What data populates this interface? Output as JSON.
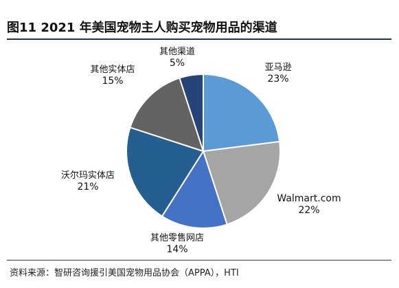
{
  "figure": {
    "title": "图11 2021 年美国宠物主人购买宠物用品的渠道",
    "source": "资料来源：智研咨询援引美国宠物用品协会（APPA），HTI"
  },
  "chart_data": {
    "type": "pie",
    "title": "图11 2021 年美国宠物主人购买宠物用品的渠道",
    "unit": "%",
    "slices": [
      {
        "label": "亚马逊",
        "value": 23,
        "display": "23%",
        "color": "#5b9bd5"
      },
      {
        "label": "Walmart.com",
        "value": 22,
        "display": "22%",
        "color": "#a5a5a5"
      },
      {
        "label": "其他零售网店",
        "value": 14,
        "display": "14%",
        "color": "#4472c4"
      },
      {
        "label": "沃尔玛实体店",
        "value": 21,
        "display": "21%",
        "color": "#255e91"
      },
      {
        "label": "其他实体店",
        "value": 15,
        "display": "15%",
        "color": "#636363"
      },
      {
        "label": "其他渠道",
        "value": 5,
        "display": "5%",
        "color": "#264478"
      }
    ]
  }
}
